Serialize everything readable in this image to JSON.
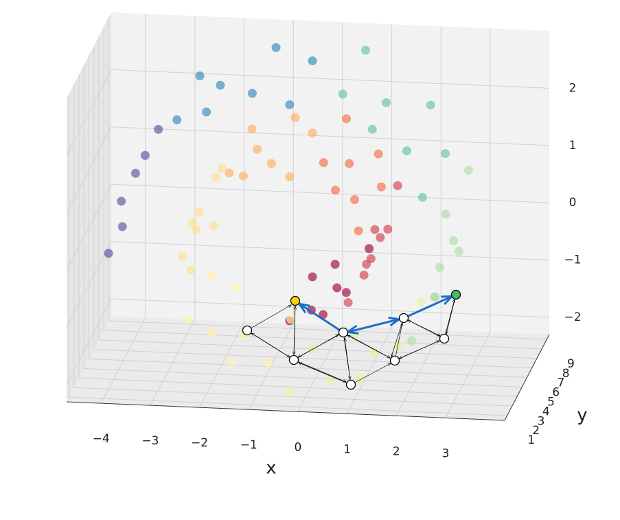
{
  "chart_data": {
    "type": "scatter3d",
    "xlabel": "x",
    "ylabel": "y",
    "xlim": [
      -4.7,
      4.2
    ],
    "ylim": [
      0.5,
      9.5
    ],
    "zlim": [
      -2.3,
      3.0
    ],
    "xticks": [
      {
        "value": -4,
        "label": "−4"
      },
      {
        "value": -3,
        "label": "−3"
      },
      {
        "value": -2,
        "label": "−2"
      },
      {
        "value": -1,
        "label": "−1"
      },
      0,
      1,
      2,
      3
    ],
    "yticks": [
      1,
      2,
      3,
      4,
      5,
      6,
      7,
      8,
      9
    ],
    "zticks": [
      {
        "value": -2,
        "label": "−2"
      },
      {
        "value": -1,
        "label": "−1"
      },
      0,
      1,
      2
    ],
    "grid": true,
    "series": [
      {
        "color": "#9e0142",
        "x": [
          -0.3,
          -0.3,
          0.01,
          0.01,
          0.32,
          0.32,
          0.63,
          0.63
        ],
        "y": [
          1.8,
          6.4,
          3.1,
          7.9,
          2.4,
          5.2,
          4.0,
          8.6
        ],
        "z": [
          -0.94,
          -0.94,
          -0.96,
          -0.96,
          -0.91,
          -0.91,
          -0.78,
          -0.78
        ]
      },
      {
        "color": "#d53e4f",
        "x": [
          0.89,
          0.89,
          1.08,
          1.08,
          1.2,
          1.2,
          1.21,
          1.21
        ],
        "y": [
          1.8,
          6.4,
          3.1,
          7.9,
          2.4,
          5.2,
          4.0,
          8.6
        ],
        "z": [
          -0.58,
          -0.58,
          -0.31,
          -0.31,
          0,
          0,
          0.34,
          0.34
        ]
      },
      {
        "color": "#f46d43",
        "x": [
          1.1,
          1.1,
          0.89,
          0.89,
          0.57,
          0.57,
          0.17,
          0.17
        ],
        "y": [
          1.8,
          6.4,
          3.1,
          7.9,
          2.4,
          5.2,
          4.0,
          8.6
        ],
        "z": [
          0.68,
          0.68,
          1,
          1,
          1.27,
          1.27,
          1.47,
          1.47
        ]
      },
      {
        "color": "#fdae61",
        "x": [
          -0.3,
          -0.3,
          -0.8,
          -0.8,
          -1.3,
          -1.3,
          -1.75,
          -1.75
        ],
        "y": [
          1.8,
          6.4,
          3.1,
          7.9,
          2.4,
          5.2,
          4.0,
          8.6
        ],
        "z": [
          1.57,
          1.57,
          1.57,
          1.57,
          1.45,
          1.45,
          1.22,
          1.22
        ]
      },
      {
        "color": "#fee08b",
        "x": [
          -2.14,
          -2.14,
          -2.41,
          -2.41,
          -2.54,
          -2.54,
          -2.53,
          -2.53
        ],
        "y": [
          1.8,
          6.4,
          3.1,
          7.9,
          2.4,
          5.2,
          4.0,
          8.6
        ],
        "z": [
          0.89,
          0.89,
          0.47,
          0.47,
          0,
          0,
          -0.5,
          -0.5
        ]
      },
      {
        "color": "#fff3a8",
        "x": [
          -2.35,
          -2.35,
          -2.02,
          -2.02,
          -1.55,
          -1.55,
          -0.96,
          -0.96
        ],
        "y": [
          1.8,
          6.4,
          3.1,
          7.9,
          2.4,
          5.2,
          4.0,
          8.6
        ],
        "z": [
          -0.99,
          -0.99,
          -1.44,
          -1.44,
          -1.81,
          -1.81,
          -2.07,
          -2.07
        ]
      },
      {
        "color": "#e6f598",
        "x": [
          -0.3,
          -0.3,
          0.39,
          0.39,
          1.07,
          1.07,
          1.68,
          1.68
        ],
        "y": [
          1.8,
          6.4,
          3.1,
          7.9,
          2.4,
          5.2,
          4.0,
          8.6
        ],
        "z": [
          -2.2,
          -2.2,
          -2.17,
          -2.17,
          -2,
          -2,
          -1.67,
          -1.67
        ]
      },
      {
        "color": "#abdda4",
        "x": [
          2.18,
          2.18,
          2.53,
          2.53,
          2.69,
          2.69,
          2.65,
          2.65
        ],
        "y": [
          1.8,
          6.4,
          3.1,
          7.9,
          2.4,
          5.2,
          4.0,
          8.6
        ],
        "z": [
          -1.2,
          -1.2,
          -0.64,
          -0.64,
          0,
          0,
          0.66,
          0.66
        ]
      },
      {
        "color": "#66c2a5",
        "x": [
          2.4,
          2.4,
          1.95,
          1.95,
          1.32,
          1.32,
          0.56,
          0.56
        ],
        "y": [
          1.8,
          6.4,
          3.1,
          7.9,
          2.4,
          5.2,
          4.0,
          8.6
        ],
        "z": [
          1.31,
          1.31,
          1.89,
          1.89,
          2.36,
          2.36,
          2.68,
          2.68
        ]
      },
      {
        "color": "#3288bd",
        "x": [
          -0.3,
          -0.3,
          -1.19,
          -1.19,
          -2.05,
          -2.05,
          -2.81,
          -2.81
        ],
        "y": [
          1.8,
          6.4,
          3.1,
          7.9,
          2.4,
          5.2,
          4.0,
          8.6
        ],
        "z": [
          2.83,
          2.83,
          2.78,
          2.78,
          2.54,
          2.54,
          2.11,
          2.11
        ]
      },
      {
        "color": "#5e4fa2",
        "x": [
          -3.43,
          -3.43,
          -3.85,
          -3.85,
          -4.04,
          -4.04
        ],
        "y": [
          1.8,
          6.4,
          3.1,
          7.9,
          2.4,
          5.2
        ],
        "z": [
          1.52,
          1.52,
          0.8,
          0.8,
          0,
          0
        ]
      }
    ]
  }
}
